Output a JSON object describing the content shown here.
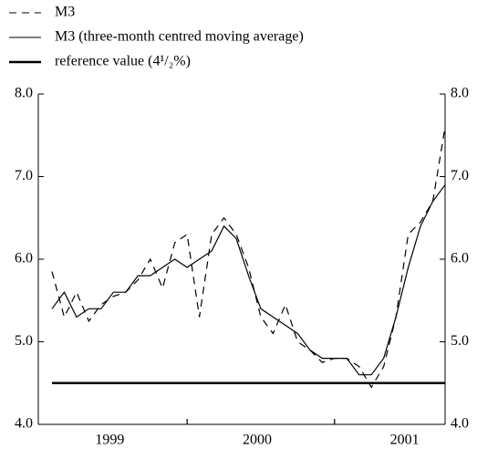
{
  "chart_data": {
    "type": "line",
    "categories": [
      null,
      null,
      null,
      null,
      null,
      "1999",
      null,
      null,
      null,
      null,
      null,
      null,
      null,
      null,
      null,
      null,
      null,
      "2000",
      null,
      null,
      null,
      null,
      null,
      null,
      null,
      null,
      null,
      null,
      null,
      "2001",
      null,
      null,
      null
    ],
    "series": [
      {
        "name": "M3",
        "color": "#000000",
        "style": "dashed",
        "values": [
          5.85,
          5.3,
          5.6,
          5.25,
          5.45,
          5.55,
          5.6,
          5.75,
          6.0,
          5.65,
          6.2,
          6.3,
          5.3,
          6.3,
          6.5,
          6.3,
          5.9,
          5.3,
          5.1,
          5.45,
          5.0,
          4.9,
          4.75,
          4.8,
          4.8,
          4.7,
          4.45,
          4.7,
          5.3,
          6.3,
          6.45,
          6.7,
          7.6
        ]
      },
      {
        "name": "M3 (three-month centred moving average)",
        "color": "#000000",
        "style": "solid",
        "values": [
          5.4,
          5.6,
          5.3,
          5.4,
          5.4,
          5.6,
          5.6,
          5.8,
          5.8,
          5.9,
          6.0,
          5.9,
          6.0,
          6.1,
          6.4,
          6.25,
          5.8,
          5.4,
          5.3,
          5.2,
          5.1,
          4.9,
          4.8,
          4.8,
          4.8,
          4.6,
          4.6,
          4.8,
          5.3,
          5.9,
          6.4,
          6.7,
          6.9
        ]
      }
    ],
    "reference": {
      "name": "reference value (4¹/₂%)",
      "value": 4.5,
      "color": "#000000"
    },
    "ylim": [
      4,
      8
    ],
    "yticks": [
      {
        "value": 4,
        "label": "4.0"
      },
      {
        "value": 5,
        "label": "5.0"
      },
      {
        "value": 6,
        "label": "6.0"
      },
      {
        "value": 7,
        "label": "7.0"
      },
      {
        "value": 8,
        "label": "8.0"
      }
    ],
    "y2lim": [
      4,
      8
    ],
    "y2ticks": [
      {
        "value": 4,
        "label": "4.0"
      },
      {
        "value": 5,
        "label": "5.0"
      },
      {
        "value": 6,
        "label": "6.0"
      },
      {
        "value": 7,
        "label": "7.0"
      },
      {
        "value": 8,
        "label": "8.0"
      }
    ],
    "grid": false
  }
}
